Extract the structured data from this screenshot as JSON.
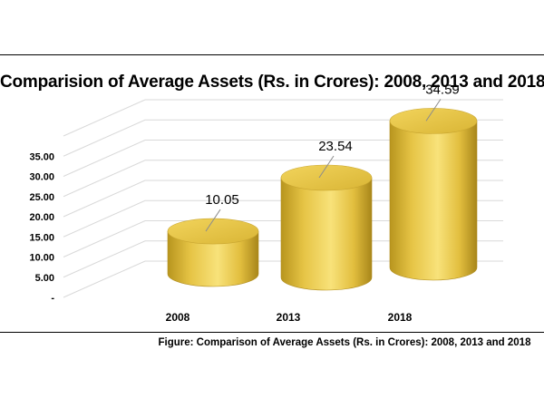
{
  "chart_data": {
    "type": "bar",
    "style": "3d-cylinder",
    "title": "Comparision of Average Assets (Rs. in Crores): 2008, 2013 and 2018",
    "categories": [
      "2008",
      "2013",
      "2018"
    ],
    "values": [
      10.05,
      23.54,
      34.59
    ],
    "value_labels": [
      "10.05",
      "23.54",
      "34.59"
    ],
    "y_ticks": [
      "-",
      "5.00",
      "10.00",
      "15.00",
      "20.00",
      "25.00",
      "30.00",
      "35.00"
    ],
    "ylim": [
      0,
      35
    ],
    "xlabel": "",
    "ylabel": "",
    "grid": true,
    "bar_color": "#E8C84A"
  },
  "caption": "Figure: Comparison of Average Assets (Rs. in Crores): 2008, 2013 and 2018"
}
